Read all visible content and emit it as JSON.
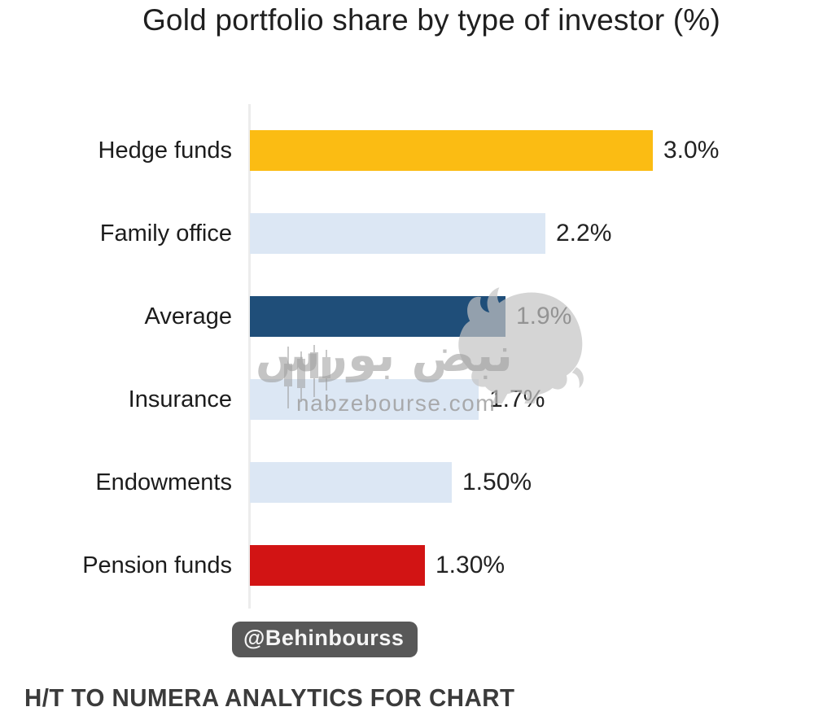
{
  "chart": {
    "title": "Gold portfolio share by type of investor (%)"
  },
  "chart_data": {
    "type": "bar",
    "orientation": "horizontal",
    "title": "Gold portfolio share by type of investor (%)",
    "categories": [
      "Hedge funds",
      "Family office",
      "Average",
      "Insurance",
      "Endowments",
      "Pension funds"
    ],
    "values": [
      3.0,
      2.2,
      1.9,
      1.7,
      1.5,
      1.3
    ],
    "value_labels": [
      "3.0%",
      "2.2%",
      "1.9%",
      "1.7%",
      "1.50%",
      "1.30%"
    ],
    "colors": [
      "#FBBC13",
      "#DCE7F4",
      "#1F4E79",
      "#DCE7F4",
      "#DCE7F4",
      "#D21414"
    ],
    "xlabel": "",
    "ylabel": "",
    "xlim": [
      0,
      3.6
    ],
    "grid": false,
    "legend": false,
    "accent_colors": {
      "gold": "#FBBC13",
      "light_blue": "#DCE7F4",
      "navy": "#1F4E79",
      "red": "#D21414",
      "axis": "#ececec"
    }
  },
  "watermark": {
    "brand_fa": "نبض بورس",
    "url": "nabzebourse.com"
  },
  "credit": {
    "handle": "@Behinbourss"
  },
  "footer": {
    "note": "H/T TO NUMERA ANALYTICS FOR CHART"
  }
}
